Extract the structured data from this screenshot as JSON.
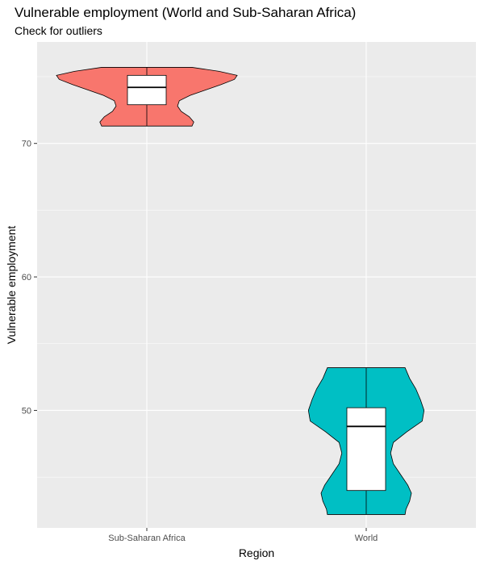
{
  "chart_data": {
    "type": "violin",
    "title": "Vulnerable employment (World and Sub-Saharan Africa)",
    "subtitle": "Check for outliers",
    "xlabel": "Region",
    "ylabel": "Vulnerable employment",
    "categories": [
      "Sub-Saharan Africa",
      "World"
    ],
    "ylim": [
      41.2,
      77.6
    ],
    "y_ticks": [
      50,
      60,
      70
    ],
    "grid": true,
    "legend": "none",
    "series": [
      {
        "category": "Sub-Saharan Africa",
        "color": "#F8766D",
        "min": 71.3,
        "q1": 72.9,
        "median": 74.2,
        "q3": 75.1,
        "max": 75.7,
        "density": [
          [
            71.3,
            0.5
          ],
          [
            71.6,
            0.52
          ],
          [
            72.0,
            0.47
          ],
          [
            72.4,
            0.38
          ],
          [
            72.8,
            0.34
          ],
          [
            73.2,
            0.36
          ],
          [
            73.6,
            0.48
          ],
          [
            74.0,
            0.65
          ],
          [
            74.4,
            0.82
          ],
          [
            74.8,
            0.97
          ],
          [
            75.1,
            1.0
          ],
          [
            75.4,
            0.8
          ],
          [
            75.7,
            0.5
          ]
        ]
      },
      {
        "category": "World",
        "color": "#00BFC4",
        "min": 42.2,
        "q1": 44.0,
        "median": 48.8,
        "q3": 50.2,
        "max": 53.2,
        "density": [
          [
            42.2,
            0.43
          ],
          [
            42.6,
            0.44
          ],
          [
            43.2,
            0.48
          ],
          [
            43.8,
            0.5
          ],
          [
            44.4,
            0.46
          ],
          [
            45.2,
            0.38
          ],
          [
            46.0,
            0.3
          ],
          [
            46.8,
            0.27
          ],
          [
            47.6,
            0.3
          ],
          [
            48.4,
            0.45
          ],
          [
            49.2,
            0.62
          ],
          [
            50.0,
            0.64
          ],
          [
            50.8,
            0.6
          ],
          [
            51.6,
            0.55
          ],
          [
            52.4,
            0.48
          ],
          [
            53.2,
            0.43
          ]
        ]
      }
    ],
    "colors": {
      "panel_bg": "#EBEBEB",
      "grid_major": "#FFFFFF",
      "outline": "#000000",
      "box_fill": "#FFFFFF",
      "tick_text": "#4D4D4D"
    }
  }
}
